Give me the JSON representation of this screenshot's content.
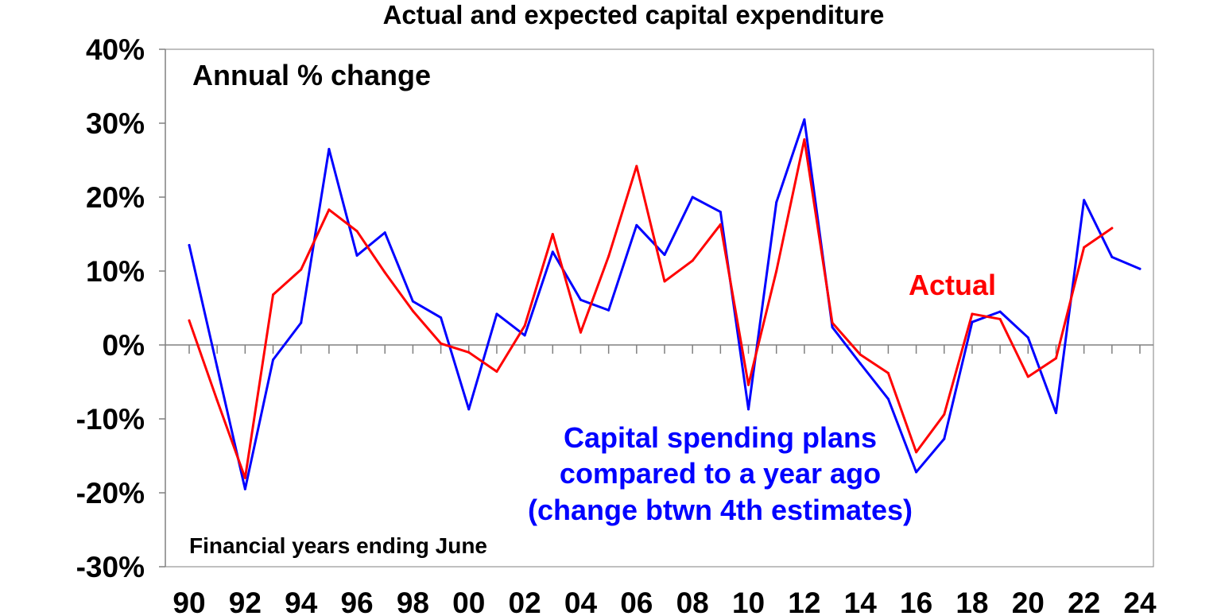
{
  "chart_data": {
    "type": "line",
    "title": "Actual and expected capital expenditure",
    "subtitle": "Annual % change",
    "xlabel": "",
    "ylabel": "",
    "footnote": "Financial years ending June",
    "ylim": [
      -30,
      40
    ],
    "y_ticks": [
      -30,
      -20,
      -10,
      0,
      10,
      20,
      30,
      40
    ],
    "y_tick_labels": [
      "-30%",
      "-20%",
      "-10%",
      "0%",
      "10%",
      "20%",
      "30%",
      "40%"
    ],
    "xlim": [
      1990,
      2024
    ],
    "x_ticks": [
      1990,
      1992,
      1994,
      1996,
      1998,
      2000,
      2002,
      2004,
      2006,
      2008,
      2010,
      2012,
      2014,
      2016,
      2018,
      2020,
      2022,
      2024
    ],
    "x_tick_labels": [
      "90",
      "92",
      "94",
      "96",
      "98",
      "00",
      "02",
      "04",
      "06",
      "08",
      "10",
      "12",
      "14",
      "16",
      "18",
      "20",
      "22",
      "24"
    ],
    "grid": false,
    "series": [
      {
        "name": "Actual",
        "color": "#ff0000",
        "x": [
          1990,
          1991,
          1992,
          1993,
          1994,
          1995,
          1996,
          1997,
          1998,
          1999,
          2000,
          2001,
          2002,
          2003,
          2004,
          2005,
          2006,
          2007,
          2008,
          2009,
          2010,
          2011,
          2012,
          2013,
          2014,
          2015,
          2016,
          2017,
          2018,
          2019,
          2020,
          2021,
          2022,
          2023
        ],
        "values": [
          3.3,
          -7.5,
          -18.0,
          6.8,
          10.2,
          18.3,
          15.4,
          9.8,
          4.6,
          0.2,
          -1.0,
          -3.6,
          2.6,
          15.0,
          1.7,
          12.0,
          24.2,
          8.6,
          11.4,
          16.3,
          -5.4,
          10.0,
          27.8,
          3.0,
          -1.3,
          -3.8,
          -14.5,
          -9.4,
          4.2,
          3.5,
          -4.3,
          -1.8,
          13.2,
          15.8
        ]
      },
      {
        "name": "Capital spending plans compared to a year ago (change btwn 4th estimates)",
        "color": "#0000ff",
        "x": [
          1990,
          1991,
          1992,
          1993,
          1994,
          1995,
          1996,
          1997,
          1998,
          1999,
          2000,
          2001,
          2002,
          2003,
          2004,
          2005,
          2006,
          2007,
          2008,
          2009,
          2010,
          2011,
          2012,
          2013,
          2014,
          2015,
          2016,
          2017,
          2018,
          2019,
          2020,
          2021,
          2022,
          2023,
          2024
        ],
        "values": [
          13.5,
          -3.0,
          -19.5,
          -2.0,
          3.0,
          26.5,
          12.1,
          15.2,
          5.9,
          3.7,
          -8.7,
          4.2,
          1.3,
          12.6,
          6.1,
          4.7,
          16.2,
          12.2,
          20.0,
          18.0,
          -8.7,
          19.3,
          30.5,
          2.4,
          -2.5,
          -7.3,
          -17.2,
          -12.7,
          3.1,
          4.5,
          1.0,
          -9.2,
          19.6,
          11.9,
          10.3
        ]
      }
    ],
    "annotations": [
      {
        "text": "Actual",
        "color": "#ff0000"
      },
      {
        "lines": [
          "Capital spending plans",
          "compared to a year ago",
          "(change btwn 4th estimates)"
        ],
        "color": "#0000ff"
      }
    ]
  }
}
